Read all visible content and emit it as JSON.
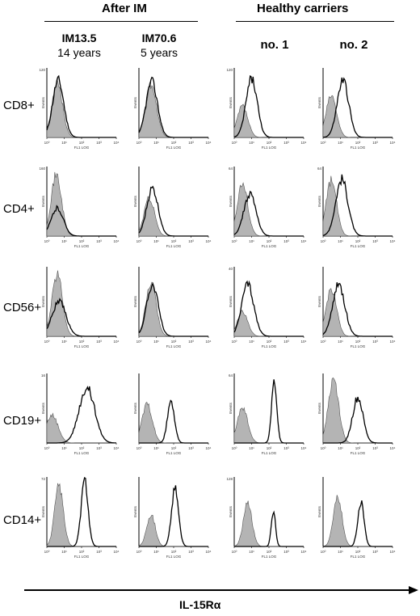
{
  "groups": {
    "after_im": "After IM",
    "healthy": "Healthy carriers"
  },
  "columns": [
    {
      "title": "IM13.5",
      "subtitle": "14 years"
    },
    {
      "title": "IM70.6",
      "subtitle": "5 years"
    },
    {
      "title": "no. 1",
      "subtitle": ""
    },
    {
      "title": "no. 2",
      "subtitle": ""
    }
  ],
  "rows": [
    "CD8+",
    "CD4+",
    "CD56+",
    "CD19+",
    "CD14+"
  ],
  "panel_text": {
    "y_axis": "Events",
    "x_axis": "FL1 LOG",
    "x_ticks": [
      "10⁰",
      "10¹",
      "10²",
      "10³",
      "10⁴"
    ]
  },
  "axis_label": "IL-15Rα",
  "colors": {
    "isotype_fill": "#b4b4b4",
    "line": "#000000"
  },
  "chart_data": {
    "type": "histogram-grid",
    "x_scale": "log",
    "x_range": [
      1,
      10000
    ],
    "series_roles": [
      "isotype control (filled grey)",
      "IL-15Rα stain (line)"
    ],
    "panels": [
      {
        "row": "CD8+",
        "column": "IM13.5",
        "ymax_label": "120",
        "iso": {
          "peak": 4,
          "width": 0.3,
          "h": 0.78
        },
        "stain": {
          "peak": 4.5,
          "width": 0.32,
          "h": 0.82
        }
      },
      {
        "row": "CD8+",
        "column": "IM70.6",
        "ymax_label": "",
        "iso": {
          "peak": 5,
          "width": 0.32,
          "h": 0.75
        },
        "stain": {
          "peak": 5.5,
          "width": 0.33,
          "h": 0.8
        }
      },
      {
        "row": "CD8+",
        "column": "no. 1",
        "ymax_label": "120",
        "iso": {
          "peak": 3,
          "width": 0.3,
          "h": 0.45
        },
        "stain": {
          "peak": 10,
          "width": 0.32,
          "h": 0.85
        }
      },
      {
        "row": "CD8+",
        "column": "no. 2",
        "ymax_label": "",
        "iso": {
          "peak": 3,
          "width": 0.3,
          "h": 0.6
        },
        "stain": {
          "peak": 14,
          "width": 0.33,
          "h": 0.82
        }
      },
      {
        "row": "CD4+",
        "column": "IM13.5",
        "ymax_label": "160",
        "iso": {
          "peak": 3.5,
          "width": 0.3,
          "h": 0.88
        },
        "stain": {
          "peak": 4,
          "width": 0.35,
          "h": 0.4
        }
      },
      {
        "row": "CD4+",
        "column": "IM70.6",
        "ymax_label": "",
        "iso": {
          "peak": 4,
          "width": 0.3,
          "h": 0.55
        },
        "stain": {
          "peak": 6,
          "width": 0.33,
          "h": 0.68
        }
      },
      {
        "row": "CD4+",
        "column": "no. 1",
        "ymax_label": "64",
        "iso": {
          "peak": 3,
          "width": 0.3,
          "h": 0.75
        },
        "stain": {
          "peak": 8,
          "width": 0.35,
          "h": 0.6
        }
      },
      {
        "row": "CD4+",
        "column": "no. 2",
        "ymax_label": "64",
        "iso": {
          "peak": 3,
          "width": 0.3,
          "h": 0.8
        },
        "stain": {
          "peak": 12,
          "width": 0.35,
          "h": 0.82
        }
      },
      {
        "row": "CD56+",
        "column": "IM13.5",
        "ymax_label": "",
        "iso": {
          "peak": 4,
          "width": 0.3,
          "h": 0.9
        },
        "stain": {
          "peak": 5,
          "width": 0.4,
          "h": 0.5
        }
      },
      {
        "row": "CD56+",
        "column": "IM70.6",
        "ymax_label": "",
        "iso": {
          "peak": 5,
          "width": 0.3,
          "h": 0.78
        },
        "stain": {
          "peak": 6,
          "width": 0.33,
          "h": 0.75
        }
      },
      {
        "row": "CD56+",
        "column": "no. 1",
        "ymax_label": "40",
        "iso": {
          "peak": 3,
          "width": 0.3,
          "h": 0.35
        },
        "stain": {
          "peak": 6,
          "width": 0.35,
          "h": 0.75
        }
      },
      {
        "row": "CD56+",
        "column": "no. 2",
        "ymax_label": "",
        "iso": {
          "peak": 3,
          "width": 0.3,
          "h": 0.68
        },
        "stain": {
          "peak": 8,
          "width": 0.35,
          "h": 0.75
        }
      },
      {
        "row": "CD19+",
        "column": "IM13.5",
        "ymax_label": "16",
        "iso": {
          "peak": 2,
          "width": 0.35,
          "h": 0.4
        },
        "stain": {
          "peak": 200,
          "width": 0.45,
          "h": 0.8
        }
      },
      {
        "row": "CD19+",
        "column": "IM70.6",
        "ymax_label": "",
        "iso": {
          "peak": 3,
          "width": 0.3,
          "h": 0.55
        },
        "stain": {
          "peak": 70,
          "width": 0.2,
          "h": 0.62
        }
      },
      {
        "row": "CD19+",
        "column": "no. 1",
        "ymax_label": "64",
        "iso": {
          "peak": 3,
          "width": 0.3,
          "h": 0.5
        },
        "stain": {
          "peak": 200,
          "width": 0.15,
          "h": 0.88
        }
      },
      {
        "row": "CD19+",
        "column": "no. 2",
        "ymax_label": "",
        "iso": {
          "peak": 4,
          "width": 0.3,
          "h": 0.9
        },
        "stain": {
          "peak": 100,
          "width": 0.3,
          "h": 0.65
        }
      },
      {
        "row": "CD14+",
        "column": "IM13.5",
        "ymax_label": "72",
        "iso": {
          "peak": 5,
          "width": 0.25,
          "h": 0.88
        },
        "stain": {
          "peak": 150,
          "width": 0.2,
          "h": 0.95
        }
      },
      {
        "row": "CD14+",
        "column": "IM70.6",
        "ymax_label": "",
        "iso": {
          "peak": 5,
          "width": 0.25,
          "h": 0.45
        },
        "stain": {
          "peak": 120,
          "width": 0.2,
          "h": 0.85
        }
      },
      {
        "row": "CD14+",
        "column": "no. 1",
        "ymax_label": "128",
        "iso": {
          "peak": 6,
          "width": 0.25,
          "h": 0.62
        },
        "stain": {
          "peak": 180,
          "width": 0.12,
          "h": 0.5
        }
      },
      {
        "row": "CD14+",
        "column": "no. 2",
        "ymax_label": "",
        "iso": {
          "peak": 7,
          "width": 0.25,
          "h": 0.72
        },
        "stain": {
          "peak": 150,
          "width": 0.18,
          "h": 0.65
        }
      }
    ]
  }
}
